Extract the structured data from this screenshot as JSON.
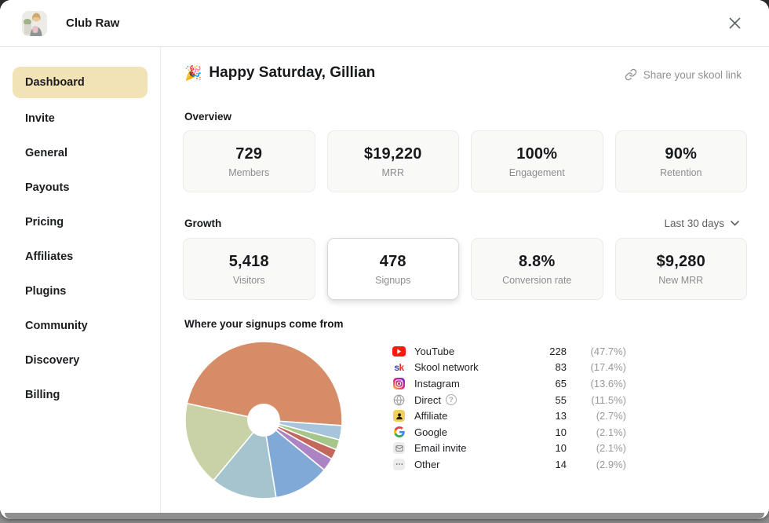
{
  "header": {
    "community_name": "Club Raw"
  },
  "sidebar": {
    "items": [
      {
        "label": "Dashboard",
        "active": true
      },
      {
        "label": "Invite"
      },
      {
        "label": "General"
      },
      {
        "label": "Payouts"
      },
      {
        "label": "Pricing"
      },
      {
        "label": "Affiliates"
      },
      {
        "label": "Plugins"
      },
      {
        "label": "Community"
      },
      {
        "label": "Discovery"
      },
      {
        "label": "Billing"
      }
    ]
  },
  "main": {
    "greeting_emoji": "🎉",
    "greeting_text": "Happy Saturday, Gillian",
    "share_link_label": "Share your skool link",
    "overview": {
      "label": "Overview",
      "cards": [
        {
          "value": "729",
          "label": "Members"
        },
        {
          "value": "$19,220",
          "label": "MRR"
        },
        {
          "value": "100%",
          "label": "Engagement"
        },
        {
          "value": "90%",
          "label": "Retention"
        }
      ]
    },
    "growth": {
      "label": "Growth",
      "period": "Last 30 days",
      "cards": [
        {
          "value": "5,418",
          "label": "Visitors"
        },
        {
          "value": "478",
          "label": "Signups",
          "selected": true
        },
        {
          "value": "8.8%",
          "label": "Conversion rate"
        },
        {
          "value": "$9,280",
          "label": "New MRR"
        }
      ]
    },
    "signups_title": "Where your signups come from"
  },
  "icons": {
    "skool_s": "s",
    "skool_k": "k",
    "direct_help": "?"
  },
  "colors": {
    "active_nav_bg": "#F1E3B5",
    "card_bg": "#F9F9F8",
    "selected_card_border": "#D7D7D5"
  },
  "chart_data": {
    "type": "pie",
    "title": "Where your signups come from",
    "labels": [
      "YouTube",
      "Skool network",
      "Instagram",
      "Direct",
      "Affiliate",
      "Google",
      "Email invite",
      "Other"
    ],
    "values": [
      228,
      83,
      65,
      55,
      13,
      10,
      10,
      14
    ],
    "percents": [
      47.7,
      17.4,
      13.6,
      11.5,
      2.7,
      2.1,
      2.1,
      2.9
    ],
    "total": 478,
    "colors": [
      "#D78C68",
      "#C9D2A6",
      "#A6C4CE",
      "#80A9D7",
      "#AC84C4",
      "#C3685C",
      "#A5C688",
      "#A6C4DB"
    ],
    "start_angle_deg": -4,
    "direction": "counterclockwise",
    "donut_hole_ratio": 0.21,
    "slice_stroke": "#ffffff",
    "legend_position": "right",
    "legend_icon_names": [
      "youtube-icon",
      "skool-icon",
      "instagram-icon",
      "globe-icon",
      "affiliate-person-icon",
      "google-icon",
      "email-icon",
      "other-dots-icon"
    ]
  }
}
